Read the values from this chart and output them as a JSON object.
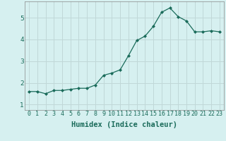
{
  "x": [
    0,
    1,
    2,
    3,
    4,
    5,
    6,
    7,
    8,
    9,
    10,
    11,
    12,
    13,
    14,
    15,
    16,
    17,
    18,
    19,
    20,
    21,
    22,
    23
  ],
  "y": [
    1.6,
    1.6,
    1.5,
    1.65,
    1.65,
    1.7,
    1.75,
    1.75,
    1.9,
    2.35,
    2.45,
    2.6,
    3.25,
    3.95,
    4.15,
    4.6,
    5.25,
    5.45,
    5.05,
    4.85,
    4.35,
    4.35,
    4.4,
    4.35
  ],
  "xlabel": "Humidex (Indice chaleur)",
  "ylim": [
    0.75,
    5.75
  ],
  "xlim": [
    -0.5,
    23.5
  ],
  "yticks": [
    1,
    2,
    3,
    4,
    5
  ],
  "xticks": [
    0,
    1,
    2,
    3,
    4,
    5,
    6,
    7,
    8,
    9,
    10,
    11,
    12,
    13,
    14,
    15,
    16,
    17,
    18,
    19,
    20,
    21,
    22,
    23
  ],
  "line_color": "#1a6b5a",
  "marker_color": "#1a6b5a",
  "bg_color": "#d6f0f0",
  "grid_color": "#c0d8d8",
  "xlabel_fontsize": 7.5,
  "tick_fontsize": 6.0
}
